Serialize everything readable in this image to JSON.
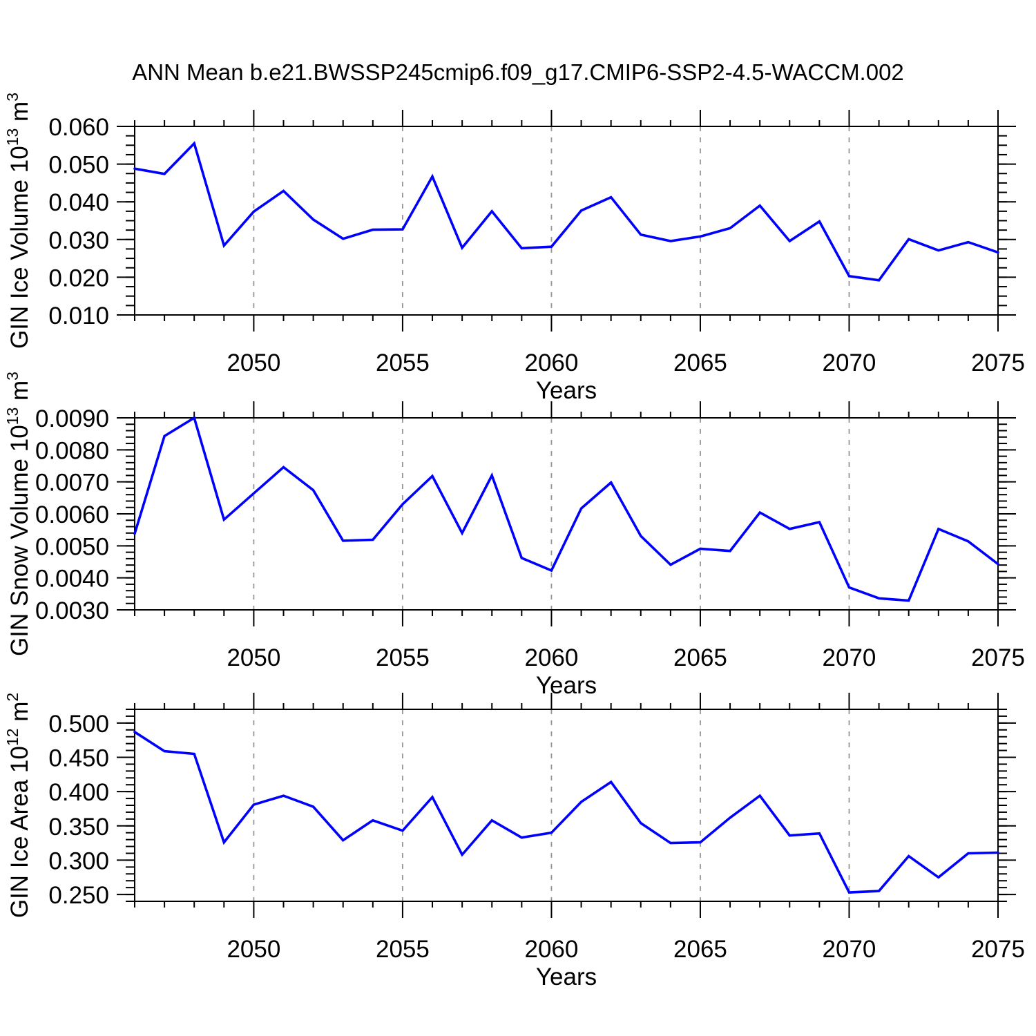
{
  "chart": {
    "title": "ANN Mean b.e21.BWSSP245cmip6.f09_g17.CMIP6-SSP2-4.5-WACCM.002"
  },
  "colors": {
    "line": "#0000ff",
    "axis": "#000000",
    "grid": "#969696",
    "text": "#000000",
    "background": "#ffffff"
  },
  "chart_data": {
    "type": "line",
    "xlabel": "Years",
    "x": [
      2046,
      2047,
      2048,
      2049,
      2050,
      2051,
      2052,
      2053,
      2054,
      2055,
      2056,
      2057,
      2058,
      2059,
      2060,
      2061,
      2062,
      2063,
      2064,
      2065,
      2066,
      2067,
      2068,
      2069,
      2070,
      2071,
      2072,
      2073,
      2074,
      2075
    ],
    "xticks_labeled": [
      2050,
      2055,
      2060,
      2065,
      2070,
      2075
    ],
    "xtick_labels": [
      "2050",
      "2055",
      "2060",
      "2065",
      "2070",
      "2075"
    ],
    "grid_x": [
      2050,
      2055,
      2060,
      2065,
      2070
    ],
    "legend": "none",
    "grid": "vertical-dashed",
    "panels": [
      {
        "name": "gin-ice-volume",
        "ylabel_plain": "GIN Ice Volume 10^13 m^3",
        "ylabel": {
          "prefix": "GIN Ice Volume 10",
          "exp": "13",
          "unit": " m",
          "unit_exp": "3"
        },
        "ylim": [
          0.01,
          0.06
        ],
        "yticks": [
          0.01,
          0.02,
          0.03,
          0.04,
          0.05,
          0.06
        ],
        "ytick_labels": [
          "0.010",
          "0.020",
          "0.030",
          "0.040",
          "0.050",
          "0.060"
        ],
        "y_minor_step": 0.0025,
        "values": [
          0.0488,
          0.0474,
          0.0555,
          0.0284,
          0.0374,
          0.0429,
          0.0353,
          0.0302,
          0.0326,
          0.0327,
          0.0467,
          0.0278,
          0.0375,
          0.0277,
          0.0281,
          0.0377,
          0.0412,
          0.0313,
          0.0296,
          0.0308,
          0.033,
          0.039,
          0.0296,
          0.0348,
          0.0203,
          0.0192,
          0.0301,
          0.0271,
          0.0293,
          0.0266
        ]
      },
      {
        "name": "gin-snow-volume",
        "ylabel_plain": "GIN Snow Volume 10^13 m^3",
        "ylabel": {
          "prefix": "GIN Snow Volume 10",
          "exp": "13",
          "unit": " m",
          "unit_exp": "3"
        },
        "ylim": [
          0.003,
          0.009
        ],
        "yticks": [
          0.003,
          0.004,
          0.005,
          0.006,
          0.007,
          0.008,
          0.009
        ],
        "ytick_labels": [
          "0.0030",
          "0.0040",
          "0.0050",
          "0.0060",
          "0.0070",
          "0.0080",
          "0.0090"
        ],
        "y_minor_step": 0.0002,
        "values": [
          0.00538,
          0.00843,
          0.009,
          0.00582,
          0.00664,
          0.00746,
          0.00674,
          0.00516,
          0.00519,
          0.0063,
          0.00718,
          0.0054,
          0.0072,
          0.00462,
          0.00423,
          0.00617,
          0.00698,
          0.00531,
          0.00441,
          0.00491,
          0.00484,
          0.00604,
          0.00553,
          0.00574,
          0.0037,
          0.00336,
          0.00329,
          0.00553,
          0.00514,
          0.00443
        ]
      },
      {
        "name": "gin-ice-area",
        "ylabel_plain": "GIN Ice Area 10^12 m^2",
        "ylabel": {
          "prefix": "GIN Ice Area 10",
          "exp": "12",
          "unit": " m",
          "unit_exp": "2"
        },
        "ylim": [
          0.24,
          0.52
        ],
        "yticks": [
          0.25,
          0.3,
          0.35,
          0.4,
          0.45,
          0.5
        ],
        "ytick_labels": [
          "0.250",
          "0.300",
          "0.350",
          "0.400",
          "0.450",
          "0.500"
        ],
        "y_minor_step": 0.01,
        "values": [
          0.487,
          0.459,
          0.455,
          0.326,
          0.381,
          0.394,
          0.378,
          0.329,
          0.358,
          0.343,
          0.392,
          0.308,
          0.358,
          0.333,
          0.34,
          0.385,
          0.414,
          0.354,
          0.325,
          0.326,
          0.362,
          0.394,
          0.336,
          0.339,
          0.253,
          0.255,
          0.306,
          0.275,
          0.31,
          0.311
        ]
      }
    ]
  }
}
